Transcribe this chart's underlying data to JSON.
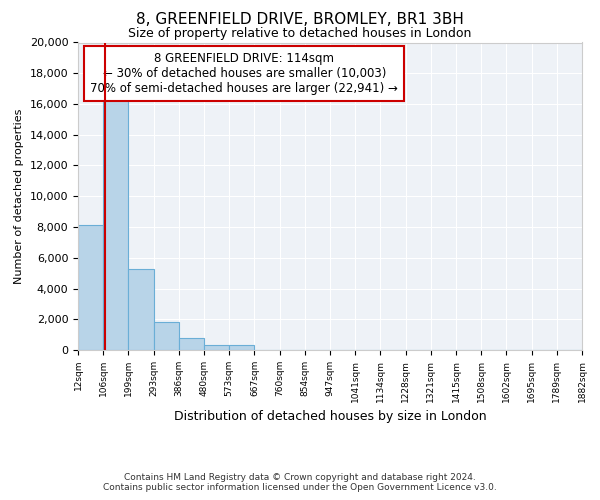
{
  "title": "8, GREENFIELD DRIVE, BROMLEY, BR1 3BH",
  "subtitle": "Size of property relative to detached houses in London",
  "xlabel": "Distribution of detached houses by size in London",
  "ylabel": "Number of detached properties",
  "footer_line1": "Contains HM Land Registry data © Crown copyright and database right 2024.",
  "footer_line2": "Contains public sector information licensed under the Open Government Licence v3.0.",
  "annotation_line1": "8 GREENFIELD DRIVE: 114sqm",
  "annotation_line2": "← 30% of detached houses are smaller (10,003)",
  "annotation_line3": "70% of semi-detached houses are larger (22,941) →",
  "red_line_x": 114,
  "bin_edges": [
    12,
    106,
    199,
    293,
    386,
    480,
    573,
    667,
    760,
    854,
    947,
    1041,
    1134,
    1228,
    1321,
    1415,
    1508,
    1602,
    1695,
    1789,
    1882
  ],
  "bin_labels": [
    "12sqm",
    "106sqm",
    "199sqm",
    "293sqm",
    "386sqm",
    "480sqm",
    "573sqm",
    "667sqm",
    "760sqm",
    "854sqm",
    "947sqm",
    "1041sqm",
    "1134sqm",
    "1228sqm",
    "1321sqm",
    "1415sqm",
    "1508sqm",
    "1602sqm",
    "1695sqm",
    "1789sqm",
    "1882sqm"
  ],
  "bar_heights": [
    8100,
    16600,
    5300,
    1800,
    750,
    300,
    300,
    0,
    0,
    0,
    0,
    0,
    0,
    0,
    0,
    0,
    0,
    0,
    0,
    0
  ],
  "bar_color": "#b8d4e8",
  "bar_edge_color": "#6aaed6",
  "background_color": "#eef2f7",
  "red_line_color": "#cc0000",
  "annotation_box_color": "#cc0000",
  "ylim": [
    0,
    20000
  ],
  "yticks": [
    0,
    2000,
    4000,
    6000,
    8000,
    10000,
    12000,
    14000,
    16000,
    18000,
    20000
  ]
}
